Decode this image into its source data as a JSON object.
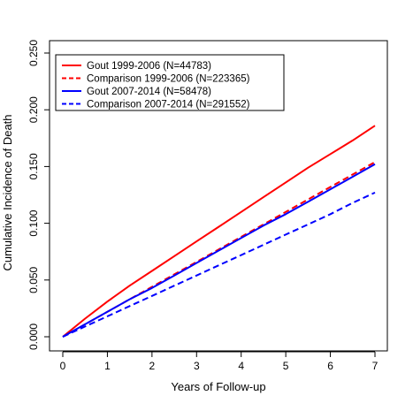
{
  "chart_data": {
    "type": "line",
    "title": "",
    "xlabel": "Years of Follow-up",
    "ylabel": "Cumulative Incidence of Death",
    "xlim": [
      0,
      7
    ],
    "ylim": [
      0,
      0.25
    ],
    "x_ticks": [
      0,
      1,
      2,
      3,
      4,
      5,
      6,
      7
    ],
    "y_ticks": [
      0.0,
      0.05,
      0.1,
      0.15,
      0.2,
      0.25
    ],
    "y_tick_labels": [
      "0.000",
      "0.050",
      "0.100",
      "0.150",
      "0.200",
      "0.250"
    ],
    "grid": false,
    "legend_position": "top-left",
    "series": [
      {
        "name": "Gout 1999-2006 (N=44783)",
        "color": "#ff0000",
        "dash": "solid",
        "x": [
          0,
          0.5,
          1,
          1.5,
          2,
          2.5,
          3,
          3.5,
          4,
          4.5,
          5,
          5.5,
          6,
          6.5,
          7
        ],
        "y": [
          0,
          0.016,
          0.031,
          0.045,
          0.058,
          0.071,
          0.084,
          0.097,
          0.11,
          0.123,
          0.136,
          0.149,
          0.161,
          0.173,
          0.186
        ]
      },
      {
        "name": "Comparison 1999-2006 (N=223365)",
        "color": "#ff0000",
        "dash": "dashed",
        "x": [
          0,
          0.5,
          1,
          1.5,
          2,
          2.5,
          3,
          3.5,
          4,
          4.5,
          5,
          5.5,
          6,
          6.5,
          7
        ],
        "y": [
          0,
          0.011,
          0.022,
          0.033,
          0.044,
          0.055,
          0.066,
          0.077,
          0.088,
          0.099,
          0.11,
          0.121,
          0.132,
          0.143,
          0.154
        ]
      },
      {
        "name": "Gout 2007-2014 (N=58478)",
        "color": "#0000ff",
        "dash": "solid",
        "x": [
          0,
          0.5,
          1,
          1.5,
          2,
          2.5,
          3,
          3.5,
          4,
          4.5,
          5,
          5.5,
          6,
          6.5,
          7
        ],
        "y": [
          0,
          0.011,
          0.022,
          0.033,
          0.043,
          0.054,
          0.065,
          0.076,
          0.087,
          0.098,
          0.108,
          0.119,
          0.13,
          0.141,
          0.152
        ]
      },
      {
        "name": "Comparison 2007-2014 (N=291552)",
        "color": "#0000ff",
        "dash": "dashed",
        "x": [
          0,
          0.5,
          1,
          1.5,
          2,
          2.5,
          3,
          3.5,
          4,
          4.5,
          5,
          5.5,
          6,
          6.5,
          7
        ],
        "y": [
          0,
          0.009,
          0.018,
          0.027,
          0.036,
          0.045,
          0.054,
          0.063,
          0.072,
          0.081,
          0.09,
          0.099,
          0.108,
          0.118,
          0.127
        ]
      }
    ]
  }
}
